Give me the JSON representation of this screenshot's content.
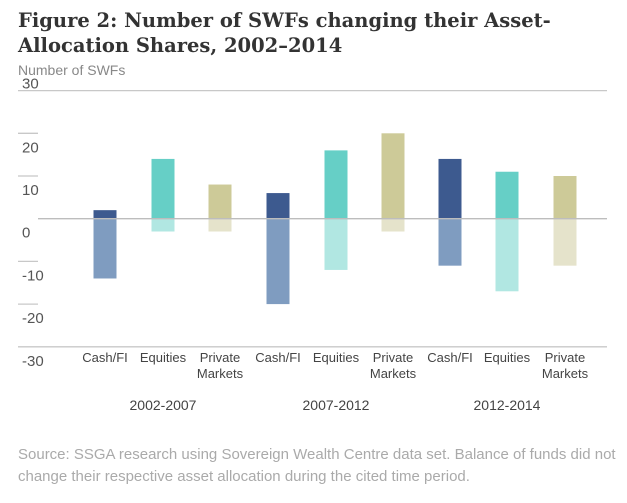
{
  "chart_data": {
    "type": "bar",
    "title": "Figure 2: Number of SWFs changing their Asset-Allocation Shares, 2002–2014",
    "ylabel": "Number of SWFs",
    "ylim": [
      -30,
      30
    ],
    "yticks": [
      30,
      20,
      10,
      0,
      -10,
      -20,
      -30
    ],
    "groups": [
      "2002-2007",
      "2007-2012",
      "2012-2014"
    ],
    "categories": [
      "Cash/FI",
      "Equities",
      "Private Markets",
      "Cash/FI",
      "Equities",
      "Private Markets",
      "Cash/FI",
      "Equities",
      "Private Markets"
    ],
    "increase": [
      2,
      14,
      8,
      6,
      16,
      20,
      14,
      11,
      10
    ],
    "decrease": [
      -14,
      -3,
      -3,
      -20,
      -12,
      -3,
      -11,
      -17,
      -11
    ],
    "colors": {
      "Cash/FI": {
        "up": "#3d5a8f",
        "down": "#7f9cc0"
      },
      "Equities": {
        "up": "#66cfc6",
        "down": "#b1e7e2"
      },
      "Private Markets": {
        "up": "#cdca98",
        "down": "#e5e3cb"
      }
    },
    "grid": "partial",
    "source": "Source: SSGA research using Sovereign Wealth Centre data set. Balance of funds did not change their respective asset allocation during the cited time period."
  }
}
